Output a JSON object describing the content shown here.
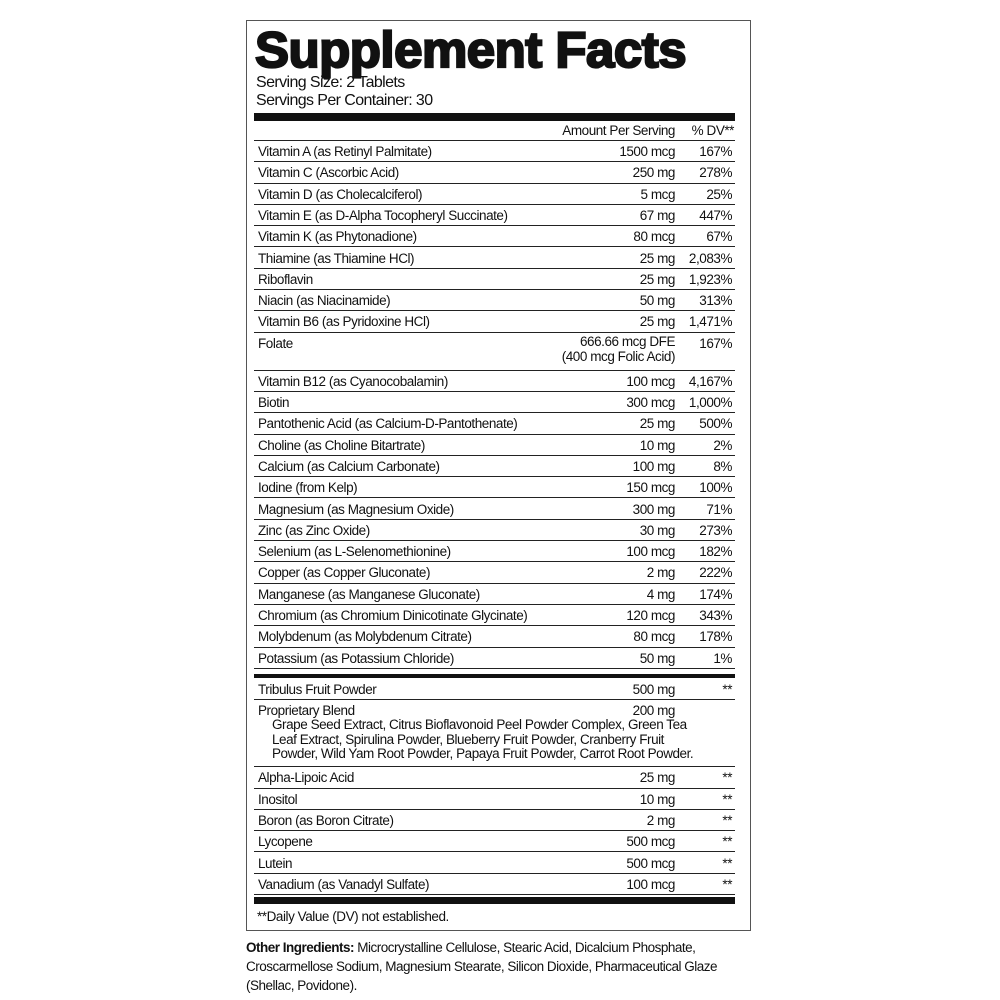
{
  "title": "Supplement Facts",
  "serving_size": "Serving Size: 2 Tablets",
  "servings_per_container": "Servings Per Container: 30",
  "header": {
    "amount": "Amount Per Serving",
    "dv": "% DV**"
  },
  "vitamins_minerals": [
    {
      "name": "Vitamin A (as Retinyl Palmitate)",
      "amount": "1500 mcg",
      "dv": "167%"
    },
    {
      "name": "Vitamin C (Ascorbic Acid)",
      "amount": "250 mg",
      "dv": "278%"
    },
    {
      "name": "Vitamin D (as Cholecalciferol)",
      "amount": "5 mcg",
      "dv": "25%"
    },
    {
      "name": "Vitamin E (as D-Alpha Tocopheryl Succinate)",
      "amount": "67 mg",
      "dv": "447%"
    },
    {
      "name": "Vitamin K (as Phytonadione)",
      "amount": "80 mcg",
      "dv": "67%"
    },
    {
      "name": "Thiamine (as Thiamine HCl)",
      "amount": "25 mg",
      "dv": "2,083%"
    },
    {
      "name": "Riboflavin",
      "amount": "25 mg",
      "dv": "1,923%"
    },
    {
      "name": "Niacin (as Niacinamide)",
      "amount": "50 mg",
      "dv": "313%"
    },
    {
      "name": "Vitamin B6 (as Pyridoxine HCl)",
      "amount": "25 mg",
      "dv": "1,471%"
    },
    {
      "name": "Folate",
      "amount": "666.66 mcg DFE",
      "amount2": "(400 mcg Folic Acid)",
      "dv": "167%"
    },
    {
      "name": "Vitamin B12 (as Cyanocobalamin)",
      "amount": "100 mcg",
      "dv": "4,167%"
    },
    {
      "name": "Biotin",
      "amount": "300 mcg",
      "dv": "1,000%"
    },
    {
      "name": "Pantothenic Acid (as Calcium-D-Pantothenate)",
      "amount": "25 mg",
      "dv": "500%"
    },
    {
      "name": "Choline (as Choline Bitartrate)",
      "amount": "10 mg",
      "dv": "2%"
    },
    {
      "name": "Calcium (as Calcium Carbonate)",
      "amount": "100 mg",
      "dv": "8%"
    },
    {
      "name": "Iodine (from Kelp)",
      "amount": "150 mcg",
      "dv": "100%"
    },
    {
      "name": "Magnesium (as Magnesium Oxide)",
      "amount": "300 mg",
      "dv": "71%"
    },
    {
      "name": "Zinc (as Zinc Oxide)",
      "amount": "30 mg",
      "dv": "273%"
    },
    {
      "name": "Selenium (as L-Selenomethionine)",
      "amount": "100 mcg",
      "dv": "182%"
    },
    {
      "name": "Copper (as Copper Gluconate)",
      "amount": "2 mg",
      "dv": "222%"
    },
    {
      "name": "Manganese (as Manganese Gluconate)",
      "amount": "4 mg",
      "dv": "174%"
    },
    {
      "name": "Chromium (as Chromium Dinicotinate Glycinate)",
      "amount": "120 mcg",
      "dv": "343%"
    },
    {
      "name": "Molybdenum (as Molybdenum Citrate)",
      "amount": "80 mcg",
      "dv": "178%"
    },
    {
      "name": "Potassium (as Potassium Chloride)",
      "amount": "50 mg",
      "dv": "1%"
    }
  ],
  "other_nutrients": [
    {
      "name": "Tribulus Fruit Powder",
      "amount": "500 mg",
      "dv": "**"
    },
    {
      "name": "Proprietary Blend",
      "amount": "200 mg",
      "dv": "",
      "sub": "Grape Seed Extract, Citrus Bioflavonoid Peel Powder Complex, Green Tea Leaf Extract, Spirulina Powder, Blueberry Fruit Powder, Cranberry Fruit Powder, Wild Yam Root Powder, Papaya Fruit Powder, Carrot Root Powder."
    },
    {
      "name": "Alpha-Lipoic Acid",
      "amount": "25 mg",
      "dv": "**"
    },
    {
      "name": "Inositol",
      "amount": "10 mg",
      "dv": "**"
    },
    {
      "name": "Boron (as Boron Citrate)",
      "amount": "2 mg",
      "dv": "**"
    },
    {
      "name": "Lycopene",
      "amount": "500 mcg",
      "dv": "**"
    },
    {
      "name": "Lutein",
      "amount": "500 mcg",
      "dv": "**"
    },
    {
      "name": "Vanadium (as Vanadyl Sulfate)",
      "amount": "100 mcg",
      "dv": "**"
    }
  ],
  "footnote": "**Daily Value (DV) not established.",
  "other_ingredients": {
    "label": "Other Ingredients:",
    "text": " Microcrystalline Cellulose, Stearic Acid, Dicalcium Phosphate, Croscarmellose Sodium, Magnesium Stearate, Silicon Dioxide, Pharmaceutical Glaze (Shellac, Povidone)."
  }
}
